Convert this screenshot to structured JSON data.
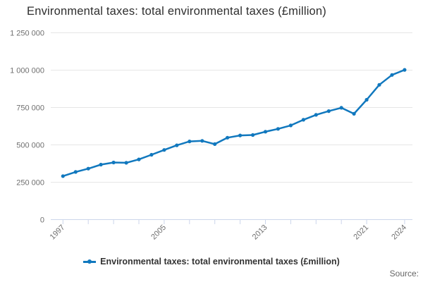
{
  "chart": {
    "title": "Environmental taxes: total environmental taxes (£million)",
    "legend_label": "Environmental taxes: total environmental taxes (£million)",
    "source_label": "Source:",
    "colors": {
      "line": "#1178be",
      "grid": "#e6e6e6",
      "axis": "#ccd6eb",
      "label_text": "#6f6f6f"
    }
  },
  "chart_data": {
    "type": "line",
    "title": "Environmental taxes: total environmental taxes (£million)",
    "xlabel": "",
    "ylabel": "",
    "ylim": [
      0,
      1250000
    ],
    "grid": "horizontal-only",
    "legend_position": "bottom-center",
    "x": [
      1997,
      1998,
      1999,
      2000,
      2001,
      2002,
      2003,
      2004,
      2005,
      2006,
      2007,
      2008,
      2009,
      2010,
      2011,
      2012,
      2013,
      2014,
      2015,
      2016,
      2017,
      2018,
      2019,
      2020,
      2021,
      2022,
      2023,
      2024
    ],
    "series": [
      {
        "name": "Environmental taxes: total environmental taxes (£million)",
        "values": [
          291000,
          319000,
          341000,
          368000,
          382000,
          380000,
          403000,
          434000,
          466000,
          497000,
          523000,
          527000,
          505000,
          548000,
          563000,
          566000,
          588000,
          607000,
          630000,
          668000,
          701000,
          726000,
          748000,
          708000,
          802000,
          902000,
          968000,
          1002000
        ]
      }
    ],
    "y_tick_values": [
      0,
      250000,
      500000,
      750000,
      1000000,
      1250000
    ],
    "y_tick_labels": [
      "0",
      "250 000",
      "500 000",
      "750 000",
      "1 000 000",
      "1 250 000"
    ],
    "x_tick_years": [
      1997,
      1999,
      2001,
      2003,
      2005,
      2007,
      2009,
      2011,
      2013,
      2015,
      2017,
      2019,
      2021,
      2024
    ],
    "x_label_years": [
      "1997",
      "2005",
      "2013",
      "2021",
      "2024"
    ]
  }
}
